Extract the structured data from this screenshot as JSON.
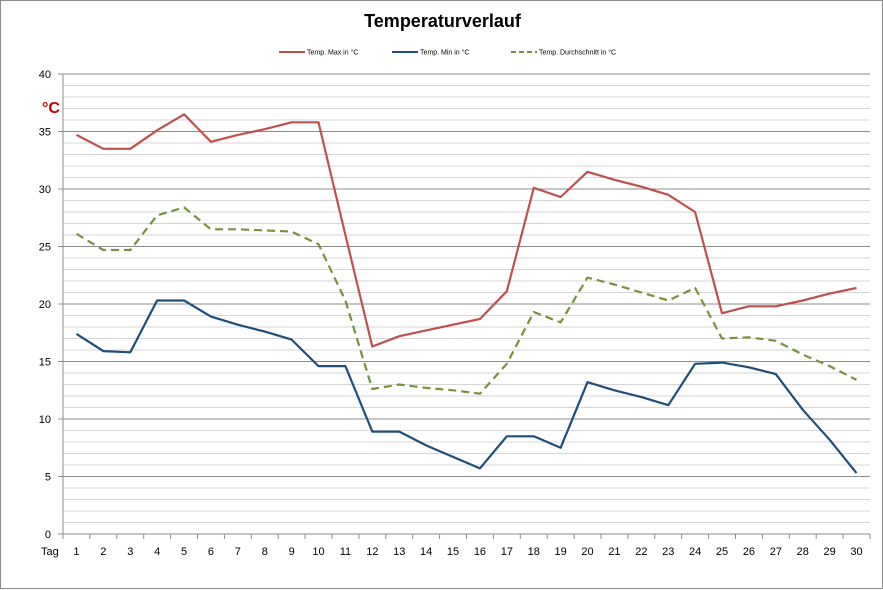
{
  "chart_data": {
    "type": "line",
    "title": "Temperaturverlauf",
    "ylabel": "°C",
    "xlabel": "Tag",
    "ylim": [
      0,
      40
    ],
    "yticks": [
      0,
      5,
      10,
      15,
      20,
      25,
      30,
      35,
      40
    ],
    "minor_grid_step": 1,
    "grid": true,
    "legend_position": "top",
    "categories": [
      "1",
      "2",
      "3",
      "4",
      "5",
      "6",
      "7",
      "8",
      "9",
      "10",
      "11",
      "12",
      "13",
      "14",
      "15",
      "16",
      "17",
      "18",
      "19",
      "20",
      "21",
      "22",
      "23",
      "24",
      "25",
      "26",
      "27",
      "28",
      "29",
      "30"
    ],
    "series": [
      {
        "name": "Temp. Max in °C",
        "color": "#c0504d",
        "dash": "solid",
        "values": [
          34.7,
          33.5,
          33.5,
          35.1,
          36.5,
          34.1,
          34.7,
          35.2,
          35.8,
          35.8,
          26.0,
          16.3,
          17.2,
          17.7,
          18.2,
          18.7,
          21.1,
          30.1,
          29.3,
          31.5,
          30.8,
          30.2,
          29.5,
          28.0,
          19.2,
          19.8,
          19.8,
          20.3,
          20.9,
          21.4
        ]
      },
      {
        "name": "Temp. Min in °C",
        "color": "#1f4e79",
        "dash": "solid",
        "values": [
          17.4,
          15.9,
          15.8,
          20.3,
          20.3,
          18.9,
          18.2,
          17.6,
          16.9,
          14.6,
          14.6,
          8.9,
          8.9,
          7.7,
          6.7,
          5.7,
          8.5,
          8.5,
          7.5,
          13.2,
          12.5,
          11.9,
          11.2,
          14.8,
          14.9,
          14.5,
          13.9,
          10.8,
          8.2,
          5.3
        ]
      },
      {
        "name": "Temp. Durchschnitt in °C",
        "color": "#76923c",
        "dash": "dashed",
        "values": [
          26.1,
          24.7,
          24.7,
          27.7,
          28.4,
          26.5,
          26.5,
          26.4,
          26.3,
          25.2,
          20.3,
          12.6,
          13.0,
          12.7,
          12.5,
          12.2,
          14.8,
          19.3,
          18.4,
          22.3,
          21.7,
          21.0,
          20.3,
          21.4,
          17.0,
          17.1,
          16.8,
          15.6,
          14.6,
          13.4
        ]
      }
    ]
  }
}
